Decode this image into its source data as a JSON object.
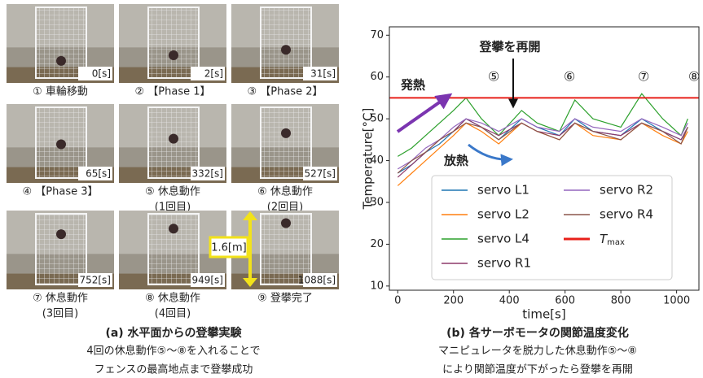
{
  "photos": {
    "panels": [
      {
        "time": "0[s]",
        "caption": [
          "① 車輪移動"
        ]
      },
      {
        "time": "2[s]",
        "caption": [
          "② 【Phase 1】"
        ]
      },
      {
        "time": "31[s]",
        "caption": [
          "③ 【Phase 2】"
        ]
      },
      {
        "time": "65[s]",
        "caption": [
          "④ 【Phase 3】"
        ]
      },
      {
        "time": "332[s]",
        "caption": [
          "⑤ 休息動作",
          "(1回目)"
        ]
      },
      {
        "time": "527[s]",
        "caption": [
          "⑥ 休息動作",
          "(2回目)"
        ]
      },
      {
        "time": "752[s]",
        "caption": [
          "⑦ 休息動作",
          "(3回目)"
        ]
      },
      {
        "time": "949[s]",
        "caption": [
          "⑧ 休息動作",
          "(4回目)"
        ]
      },
      {
        "time": "1088[s]",
        "caption": [
          "⑨ 登攀完了"
        ]
      }
    ],
    "scale_label": "1.6[m]",
    "caption_title": "(a) 水平面からの登攀実験",
    "caption_lines": [
      "4回の休息動作⑤〜⑧を入れることで",
      "フェンスの最高地点まで登攀成功"
    ]
  },
  "chart_data": {
    "type": "line",
    "xlabel": "time[s]",
    "ylabel": "Temperature[°C]",
    "xlim": [
      -30,
      1080
    ],
    "ylim": [
      9,
      72
    ],
    "xticks": [
      0,
      200,
      400,
      600,
      800,
      1000
    ],
    "yticks": [
      10,
      20,
      30,
      40,
      50,
      60,
      70
    ],
    "x": [
      0,
      50,
      100,
      150,
      200,
      245,
      300,
      362,
      444,
      500,
      580,
      635,
      700,
      800,
      875,
      950,
      1016,
      1040
    ],
    "series": [
      {
        "name": "servo L1",
        "color": "#1f77b4",
        "values": [
          37,
          39,
          42,
          44,
          47,
          50,
          48,
          45,
          50,
          48,
          46,
          50,
          47,
          46,
          50,
          47,
          45,
          48
        ]
      },
      {
        "name": "servo L2",
        "color": "#ff7f0e",
        "values": [
          34,
          37,
          40,
          43,
          46,
          49,
          47,
          44,
          49,
          47,
          45,
          49,
          46,
          45,
          49,
          46,
          44,
          47
        ]
      },
      {
        "name": "servo L4",
        "color": "#2ca02c",
        "values": [
          41,
          43,
          46,
          49,
          52,
          55,
          50,
          46,
          52,
          49,
          47,
          54.5,
          50,
          48,
          56,
          50,
          46,
          50
        ]
      },
      {
        "name": "servo R1",
        "color": "#8e3a6a",
        "values": [
          36,
          39,
          42,
          45,
          47,
          50,
          48,
          46,
          49,
          47,
          46,
          49,
          47,
          46,
          49,
          47,
          45,
          48
        ]
      },
      {
        "name": "servo R2",
        "color": "#9467bd",
        "values": [
          38,
          40,
          43,
          45,
          48,
          50,
          49,
          47,
          50,
          48,
          47,
          50,
          48,
          47,
          50,
          48,
          46,
          49
        ]
      },
      {
        "name": "servo R4",
        "color": "#8c564b",
        "values": [
          37,
          40,
          42,
          45,
          47,
          49,
          48,
          45,
          49,
          47,
          45,
          49,
          47,
          45,
          49,
          47,
          44,
          48
        ]
      }
    ],
    "threshold": {
      "value": 55,
      "color": "#e8201a",
      "label": "T",
      "label_sub": "max"
    },
    "annotations": [
      "登攀を再開",
      "発熱",
      "放熱",
      "⑤",
      "⑥",
      "⑦",
      "⑧"
    ],
    "caption_title": "(b) 各サーボモータの関節温度変化",
    "caption_lines": [
      "マニピュレータを脱力した休息動作⑤〜⑧",
      "により関節温度が下がったら登攀を再開"
    ]
  }
}
